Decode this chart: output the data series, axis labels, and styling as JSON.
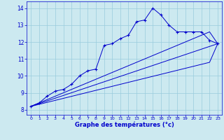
{
  "xlabel": "Graphe des températures (°c)",
  "xlim": [
    -0.5,
    23.5
  ],
  "ylim": [
    7.7,
    14.4
  ],
  "yticks": [
    8,
    9,
    10,
    11,
    12,
    13,
    14
  ],
  "xticks": [
    0,
    1,
    2,
    3,
    4,
    5,
    6,
    7,
    8,
    9,
    10,
    11,
    12,
    13,
    14,
    15,
    16,
    17,
    18,
    19,
    20,
    21,
    22,
    23
  ],
  "bg_color": "#cce9f0",
  "line_color": "#0000cc",
  "grid_color": "#99ccdd",
  "main_line": {
    "x": [
      0,
      1,
      2,
      3,
      4,
      5,
      6,
      7,
      8,
      9,
      10,
      11,
      12,
      13,
      14,
      15,
      16,
      17,
      18,
      19,
      20,
      21,
      22,
      23
    ],
    "y": [
      8.2,
      8.4,
      8.8,
      9.1,
      9.2,
      9.5,
      10.0,
      10.3,
      10.4,
      11.8,
      11.9,
      12.2,
      12.4,
      13.2,
      13.3,
      14.0,
      13.6,
      13.0,
      12.6,
      12.6,
      12.6,
      12.6,
      12.1,
      11.9
    ]
  },
  "trend_line1": {
    "x": [
      0,
      23
    ],
    "y": [
      8.2,
      11.9
    ]
  },
  "trend_line2": {
    "x": [
      0,
      22,
      23
    ],
    "y": [
      8.2,
      12.6,
      11.9
    ]
  },
  "trend_line3": {
    "x": [
      0,
      22,
      23
    ],
    "y": [
      8.2,
      10.8,
      11.9
    ]
  }
}
